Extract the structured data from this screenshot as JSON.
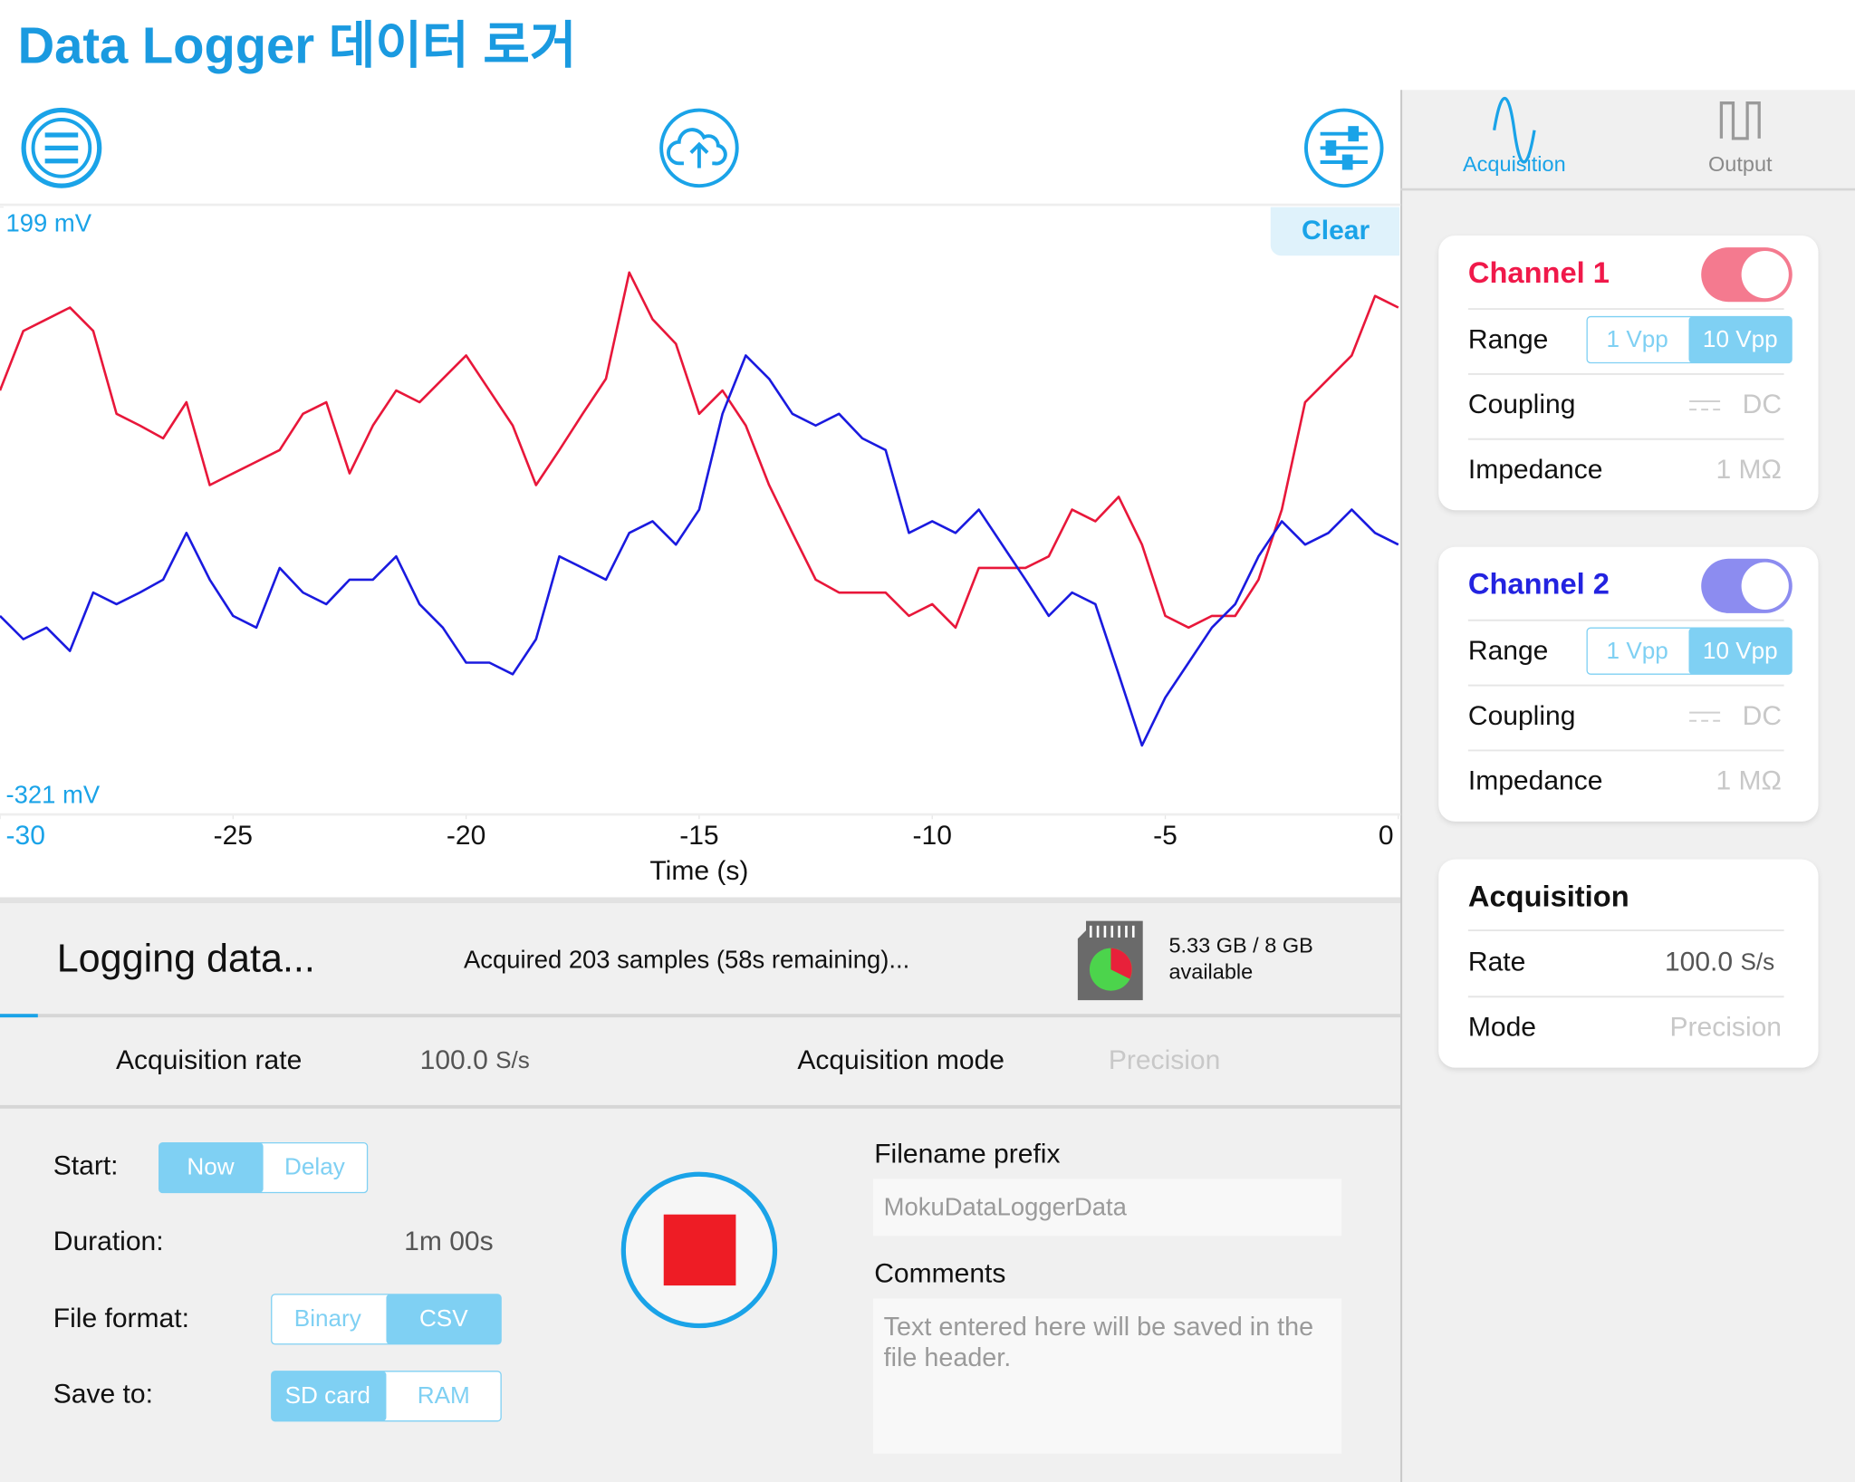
{
  "header": {
    "title": "Data Logger 데이터 로거"
  },
  "chart_data": {
    "type": "line",
    "xlabel": "Time (s)",
    "x": [
      -30,
      -29.5,
      -29,
      -28.5,
      -28,
      -27.5,
      -27,
      -26.5,
      -26,
      -25.5,
      -25,
      -24.5,
      -24,
      -23.5,
      -23,
      -22.5,
      -22,
      -21.5,
      -21,
      -20.5,
      -20,
      -19.5,
      -19,
      -18.5,
      -18,
      -17.5,
      -17,
      -16.5,
      -16,
      -15.5,
      -15,
      -14.5,
      -14,
      -13.5,
      -13,
      -12.5,
      -12,
      -11.5,
      -11,
      -10.5,
      -10,
      -9.5,
      -9,
      -8.5,
      -8,
      -7.5,
      -7,
      -6.5,
      -6,
      -5.5,
      -5,
      -4.5,
      -4,
      -3.5,
      -3,
      -2.5,
      -2,
      -1.5,
      -1,
      -0.5,
      0
    ],
    "series": [
      {
        "color": "#e8173a",
        "values": [
          42,
          93,
          103,
          113,
          93,
          22,
          12,
          1,
          32,
          -39,
          -29,
          -19,
          -9,
          22,
          32,
          -29,
          12,
          42,
          32,
          52,
          72,
          42,
          12,
          -39,
          -9,
          22,
          52,
          143,
          103,
          82,
          22,
          42,
          12,
          -39,
          -80,
          -120,
          -131,
          -131,
          -131,
          -151,
          -141,
          -161,
          -110,
          -110,
          -110,
          -100,
          -60,
          -70,
          -49,
          -90,
          -151,
          -161,
          -151,
          -151,
          -120,
          -60,
          32,
          52,
          72,
          123,
          113
        ]
      },
      {
        "color": "#1a1adf",
        "values": [
          -151,
          -171,
          -161,
          -181,
          -131,
          -141,
          -131,
          -120,
          -80,
          -120,
          -151,
          -161,
          -110,
          -131,
          -141,
          -120,
          -120,
          -100,
          -141,
          -161,
          -191,
          -191,
          -201,
          -171,
          -100,
          -110,
          -120,
          -80,
          -70,
          -90,
          -60,
          22,
          72,
          52,
          22,
          12,
          22,
          1,
          -9,
          -80,
          -70,
          -80,
          -60,
          -90,
          -120,
          -151,
          -131,
          -141,
          -201,
          -262,
          -221,
          -191,
          -161,
          -141,
          -100,
          -70,
          -90,
          -80,
          -60,
          -80,
          -90
        ]
      }
    ],
    "xlim": [
      -30,
      0
    ],
    "xticks": [
      -30,
      -25,
      -20,
      -15,
      -10,
      -5,
      0
    ],
    "ylim": [
      -321,
      199
    ],
    "yticks": [
      {
        "value": -321,
        "label": "-321 mV"
      },
      {
        "value": 199,
        "label": "199 mV"
      }
    ]
  },
  "clear_button": "Clear",
  "status": {
    "title": "Logging data...",
    "progress": "Acquired 203 samples (58s remaining)...",
    "storage": "5.33 GB / 8 GB",
    "storage_note": "available"
  },
  "summary": {
    "rate_label": "Acquisition rate",
    "rate_value": "100.0",
    "rate_unit": "S/s",
    "mode_label": "Acquisition mode",
    "mode_value": "Precision"
  },
  "controls": {
    "start_label": "Start:",
    "start_options": [
      "Now",
      "Delay"
    ],
    "duration_label": "Duration:",
    "duration_value": "1m 00s",
    "format_label": "File format:",
    "format_options": [
      "Binary",
      "CSV"
    ],
    "save_label": "Save to:",
    "save_options": [
      "SD card",
      "RAM"
    ]
  },
  "file": {
    "prefix_label": "Filename prefix",
    "prefix_placeholder": "MokuDataLoggerData",
    "comments_label": "Comments",
    "comments_placeholder": "Text entered here will be saved in the file header."
  },
  "tabs": [
    "Acquisition",
    "Output"
  ],
  "channels": [
    {
      "title": "Channel 1",
      "range_label": "Range",
      "range_options": [
        "1 Vpp",
        "10 Vpp"
      ],
      "coupling_label": "Coupling",
      "coupling_value": "DC",
      "impedance_label": "Impedance",
      "impedance_value": "1 MΩ"
    },
    {
      "title": "Channel 2",
      "range_label": "Range",
      "range_options": [
        "1 Vpp",
        "10 Vpp"
      ],
      "coupling_label": "Coupling",
      "coupling_value": "DC",
      "impedance_label": "Impedance",
      "impedance_value": "1 MΩ"
    }
  ],
  "acquisition_panel": {
    "title": "Acquisition",
    "rate_label": "Rate",
    "rate_value": "100.0",
    "rate_unit": "S/s",
    "mode_label": "Mode",
    "mode_value": "Precision"
  }
}
